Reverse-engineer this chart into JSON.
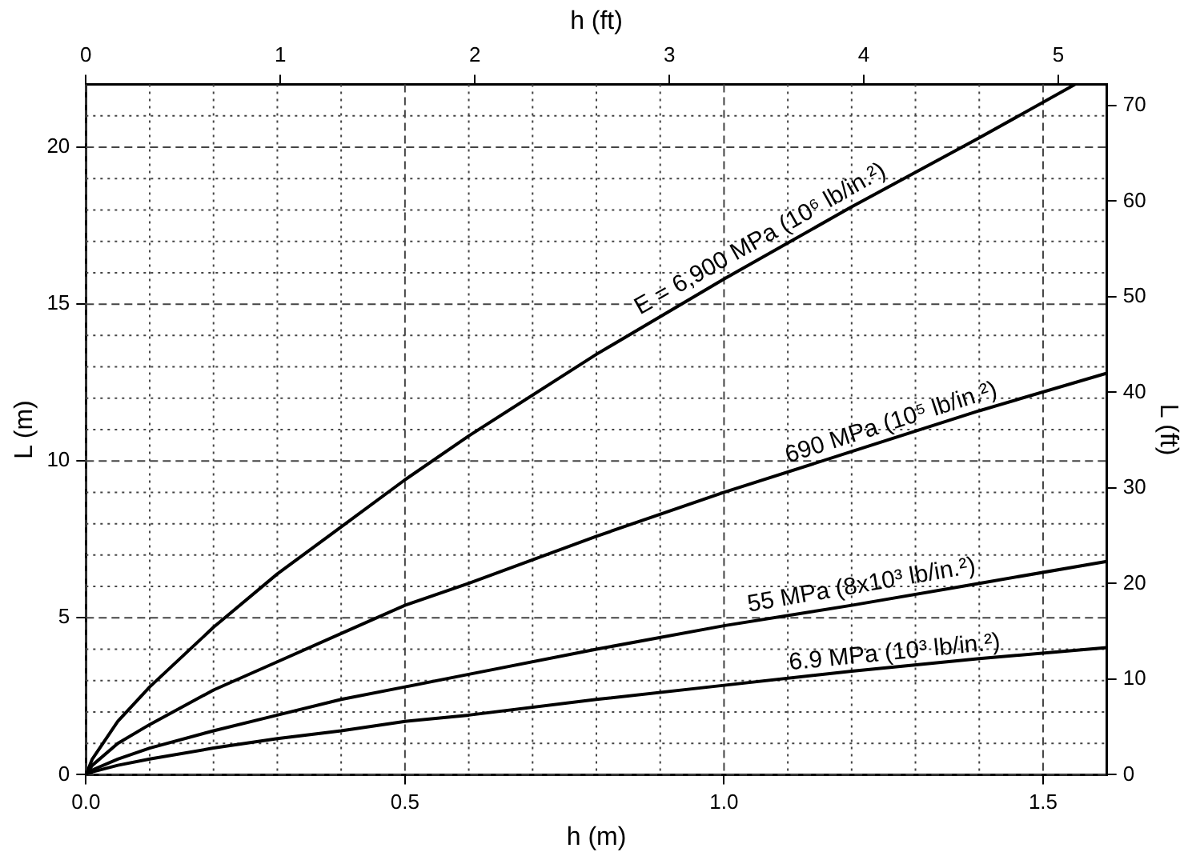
{
  "chart_data": {
    "type": "line",
    "xlabel": "h (m)",
    "ylabel": "L (m)",
    "x2label": "h (ft)",
    "y2label": "L (ft)",
    "xlim": [
      0,
      1.6
    ],
    "xticks": [
      {
        "value": 0,
        "label": "0.0"
      },
      {
        "value": 0.1,
        "label": null
      },
      {
        "value": 0.2,
        "label": null
      },
      {
        "value": 0.3,
        "label": null
      },
      {
        "value": 0.4,
        "label": null
      },
      {
        "value": 0.5,
        "label": "0.5"
      },
      {
        "value": 0.6,
        "label": null
      },
      {
        "value": 0.7,
        "label": null
      },
      {
        "value": 0.8,
        "label": null
      },
      {
        "value": 0.9,
        "label": null
      },
      {
        "value": 1,
        "label": "1.0"
      },
      {
        "value": 1.1,
        "label": null
      },
      {
        "value": 1.2,
        "label": null
      },
      {
        "value": 1.3,
        "label": null
      },
      {
        "value": 1.4,
        "label": null
      },
      {
        "value": 1.5,
        "label": "1.5"
      }
    ],
    "ylim": [
      0,
      22
    ],
    "yticks": [
      0,
      {
        "value": 1,
        "label": null
      },
      {
        "value": 2,
        "label": null
      },
      {
        "value": 3,
        "label": null
      },
      {
        "value": 4,
        "label": null
      },
      5,
      {
        "value": 6,
        "label": null
      },
      {
        "value": 7,
        "label": null
      },
      {
        "value": 8,
        "label": null
      },
      {
        "value": 9,
        "label": null
      },
      10,
      {
        "value": 11,
        "label": null
      },
      {
        "value": 12,
        "label": null
      },
      {
        "value": 13,
        "label": null
      },
      {
        "value": 14,
        "label": null
      },
      15,
      {
        "value": 16,
        "label": null
      },
      {
        "value": 17,
        "label": null
      },
      {
        "value": 18,
        "label": null
      },
      {
        "value": 19,
        "label": null
      },
      20,
      {
        "value": 21,
        "label": null
      }
    ],
    "x2lim": [
      0,
      5.25
    ],
    "x2ticks": [
      0,
      1,
      2,
      3,
      4,
      5
    ],
    "y2lim": [
      0,
      72.2
    ],
    "y2ticks": [
      0,
      10,
      20,
      30,
      40,
      50,
      60,
      70
    ],
    "grid": true,
    "legend": false,
    "marker": "none",
    "line_style": "solid",
    "series": [
      {
        "color": "#000000",
        "x": [
          0,
          0.01,
          0.05,
          0.1,
          0.2,
          0.3,
          0.4,
          0.5,
          0.6,
          0.8,
          1.0,
          1.2,
          1.4,
          1.55
        ],
        "values": [
          0,
          0.5,
          1.7,
          2.8,
          4.7,
          6.4,
          7.9,
          9.4,
          10.8,
          13.4,
          15.8,
          18.1,
          20.3,
          22.0
        ]
      },
      {
        "color": "#000000",
        "x": [
          0,
          0.01,
          0.05,
          0.1,
          0.2,
          0.3,
          0.4,
          0.5,
          0.6,
          0.8,
          1.0,
          1.2,
          1.4,
          1.6
        ],
        "values": [
          0,
          0.3,
          1.0,
          1.6,
          2.7,
          3.6,
          4.5,
          5.4,
          6.1,
          7.6,
          9.0,
          10.3,
          11.6,
          12.8
        ]
      },
      {
        "color": "#000000",
        "x": [
          0,
          0.01,
          0.05,
          0.1,
          0.2,
          0.3,
          0.4,
          0.5,
          0.6,
          0.8,
          1.0,
          1.2,
          1.4,
          1.6
        ],
        "values": [
          0,
          0.15,
          0.5,
          0.85,
          1.4,
          1.9,
          2.4,
          2.8,
          3.2,
          4.0,
          4.75,
          5.4,
          6.1,
          6.8
        ]
      },
      {
        "color": "#000000",
        "x": [
          0,
          0.01,
          0.05,
          0.1,
          0.2,
          0.3,
          0.4,
          0.5,
          0.6,
          0.8,
          1.0,
          1.2,
          1.4,
          1.6
        ],
        "values": [
          0,
          0.09,
          0.3,
          0.5,
          0.85,
          1.15,
          1.4,
          1.7,
          1.9,
          2.4,
          2.85,
          3.3,
          3.7,
          4.05
        ]
      }
    ],
    "annotations": [
      {
        "text": "E = 6,900 MPa (10⁶ lb/in.²)",
        "x": 1.07,
        "y": 16.6
      },
      {
        "text": "690 MPa (10⁵ lb/in.²)",
        "x": 1.27,
        "y": 10.7
      },
      {
        "text": "55 MPa (8x10³ lb/in.²)",
        "x": 1.22,
        "y": 5.5
      },
      {
        "text": "6.9 MPa (10³ lb/in.²)",
        "x": 1.27,
        "y": 3.35
      }
    ]
  }
}
